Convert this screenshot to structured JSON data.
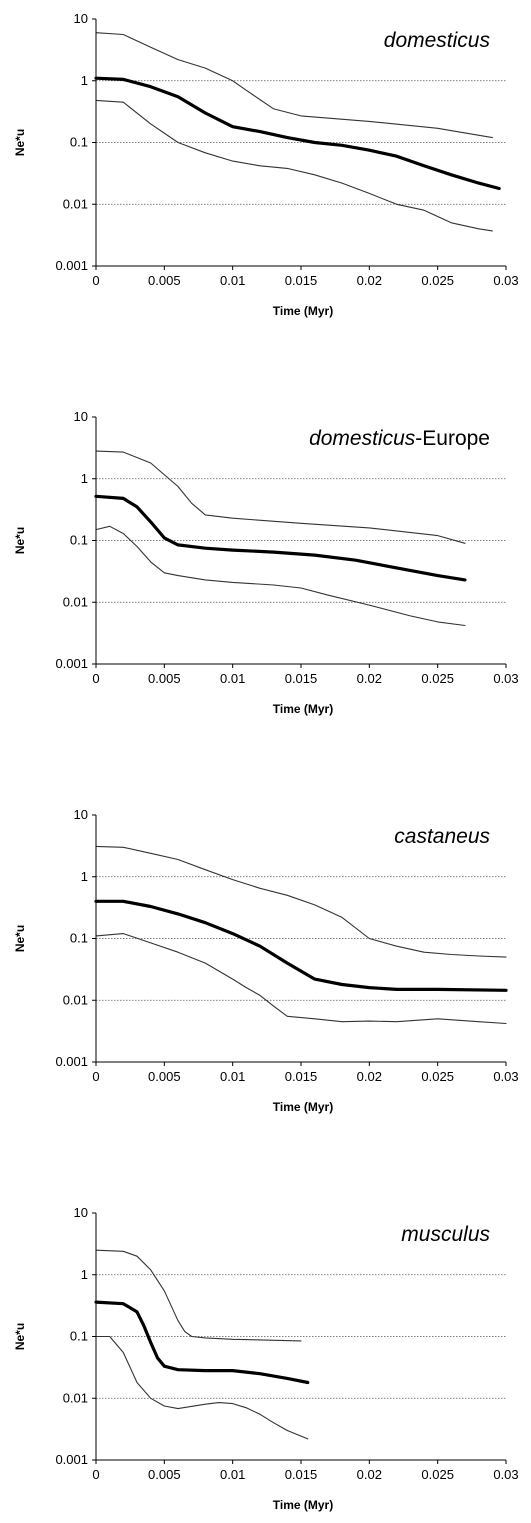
{
  "chart_data": [
    {
      "type": "line",
      "title": "domesticus",
      "title_suffix": "",
      "xlabel": "Time (Myr)",
      "ylabel": "Ne*u",
      "xlim": [
        0,
        0.03
      ],
      "ylim": [
        0.001,
        10
      ],
      "y_scale": "log",
      "x_ticks": [
        "0",
        "0.005",
        "0.01",
        "0.015",
        "0.02",
        "0.025",
        "0.03"
      ],
      "y_ticks": [
        "0.001",
        "0.01",
        "0.1",
        "1",
        "10"
      ],
      "gridlines_y": [
        0.01,
        0.1,
        1
      ],
      "series": [
        {
          "role": "upper",
          "x": [
            0,
            0.002,
            0.004,
            0.006,
            0.008,
            0.01,
            0.011,
            0.013,
            0.015,
            0.02,
            0.025,
            0.029
          ],
          "y": [
            6,
            5.6,
            3.5,
            2.2,
            1.6,
            1.0,
            0.7,
            0.35,
            0.27,
            0.22,
            0.17,
            0.12
          ]
        },
        {
          "role": "median",
          "x": [
            0,
            0.002,
            0.004,
            0.006,
            0.008,
            0.01,
            0.012,
            0.014,
            0.016,
            0.018,
            0.02,
            0.022,
            0.024,
            0.026,
            0.028,
            0.0295
          ],
          "y": [
            1.1,
            1.05,
            0.8,
            0.55,
            0.3,
            0.18,
            0.15,
            0.12,
            0.1,
            0.09,
            0.075,
            0.06,
            0.042,
            0.03,
            0.022,
            0.018
          ]
        },
        {
          "role": "lower",
          "x": [
            0,
            0.002,
            0.004,
            0.006,
            0.008,
            0.01,
            0.012,
            0.014,
            0.016,
            0.018,
            0.02,
            0.022,
            0.024,
            0.026,
            0.028,
            0.029
          ],
          "y": [
            0.48,
            0.45,
            0.2,
            0.1,
            0.068,
            0.05,
            0.042,
            0.038,
            0.03,
            0.022,
            0.015,
            0.01,
            0.008,
            0.005,
            0.004,
            0.0037
          ]
        }
      ]
    },
    {
      "type": "line",
      "title": "domesticus",
      "title_suffix": "-Europe",
      "xlabel": "Time (Myr)",
      "ylabel": "Ne*u",
      "xlim": [
        0,
        0.03
      ],
      "ylim": [
        0.001,
        10
      ],
      "y_scale": "log",
      "x_ticks": [
        "0",
        "0.005",
        "0.01",
        "0.015",
        "0.02",
        "0.025",
        "0.03"
      ],
      "y_ticks": [
        "0.001",
        "0.01",
        "0.1",
        "1",
        "10"
      ],
      "gridlines_y": [
        0.01,
        0.1,
        1
      ],
      "series": [
        {
          "role": "upper",
          "x": [
            0,
            0.002,
            0.004,
            0.006,
            0.007,
            0.008,
            0.01,
            0.015,
            0.02,
            0.025,
            0.027
          ],
          "y": [
            2.8,
            2.7,
            1.8,
            0.75,
            0.4,
            0.26,
            0.23,
            0.19,
            0.16,
            0.12,
            0.09
          ]
        },
        {
          "role": "median",
          "x": [
            0,
            0.002,
            0.003,
            0.004,
            0.005,
            0.006,
            0.008,
            0.01,
            0.013,
            0.016,
            0.019,
            0.022,
            0.025,
            0.027
          ],
          "y": [
            0.52,
            0.48,
            0.35,
            0.2,
            0.11,
            0.085,
            0.075,
            0.07,
            0.065,
            0.058,
            0.048,
            0.036,
            0.027,
            0.023
          ]
        },
        {
          "role": "lower",
          "x": [
            0,
            0.001,
            0.002,
            0.003,
            0.004,
            0.005,
            0.006,
            0.008,
            0.01,
            0.013,
            0.015,
            0.017,
            0.02,
            0.023,
            0.025,
            0.027
          ],
          "y": [
            0.15,
            0.17,
            0.13,
            0.08,
            0.045,
            0.03,
            0.027,
            0.023,
            0.021,
            0.019,
            0.017,
            0.013,
            0.009,
            0.006,
            0.0048,
            0.0042
          ]
        }
      ]
    },
    {
      "type": "line",
      "title": "castaneus",
      "title_suffix": "",
      "xlabel": "Time (Myr)",
      "ylabel": "Ne*u",
      "xlim": [
        0,
        0.03
      ],
      "ylim": [
        0.001,
        10
      ],
      "y_scale": "log",
      "x_ticks": [
        "0",
        "0.005",
        "0.01",
        "0.015",
        "0.02",
        "0.025",
        "0.03"
      ],
      "y_ticks": [
        "0.001",
        "0.01",
        "0.1",
        "1",
        "10"
      ],
      "gridlines_y": [
        0.01,
        0.1,
        1
      ],
      "series": [
        {
          "role": "upper",
          "x": [
            0,
            0.002,
            0.004,
            0.006,
            0.008,
            0.01,
            0.012,
            0.014,
            0.016,
            0.018,
            0.02,
            0.022,
            0.024,
            0.026,
            0.028,
            0.03
          ],
          "y": [
            3.1,
            3.0,
            2.4,
            1.9,
            1.3,
            0.9,
            0.65,
            0.5,
            0.35,
            0.22,
            0.1,
            0.075,
            0.06,
            0.055,
            0.052,
            0.05
          ]
        },
        {
          "role": "median",
          "x": [
            0,
            0.002,
            0.004,
            0.006,
            0.008,
            0.01,
            0.012,
            0.014,
            0.016,
            0.018,
            0.02,
            0.022,
            0.025,
            0.03
          ],
          "y": [
            0.4,
            0.4,
            0.33,
            0.25,
            0.18,
            0.12,
            0.075,
            0.04,
            0.022,
            0.018,
            0.016,
            0.015,
            0.015,
            0.0145
          ]
        },
        {
          "role": "lower",
          "x": [
            0,
            0.002,
            0.004,
            0.006,
            0.008,
            0.01,
            0.011,
            0.012,
            0.013,
            0.014,
            0.016,
            0.018,
            0.02,
            0.022,
            0.025,
            0.028,
            0.03
          ],
          "y": [
            0.11,
            0.12,
            0.085,
            0.06,
            0.04,
            0.022,
            0.016,
            0.012,
            0.008,
            0.0055,
            0.005,
            0.0045,
            0.0046,
            0.0045,
            0.005,
            0.0045,
            0.0042
          ]
        }
      ]
    },
    {
      "type": "line",
      "title": "musculus",
      "title_suffix": "",
      "xlabel": "Time (Myr)",
      "ylabel": "Ne*u",
      "xlim": [
        0,
        0.03
      ],
      "ylim": [
        0.001,
        10
      ],
      "y_scale": "log",
      "x_ticks": [
        "0",
        "0.005",
        "0.01",
        "0.015",
        "0.02",
        "0.025",
        "0.03"
      ],
      "y_ticks": [
        "0.001",
        "0.01",
        "0.1",
        "1",
        "10"
      ],
      "gridlines_y": [
        0.01,
        0.1,
        1
      ],
      "series": [
        {
          "role": "upper",
          "x": [
            0,
            0.002,
            0.003,
            0.004,
            0.005,
            0.006,
            0.0065,
            0.007,
            0.008,
            0.01,
            0.012,
            0.015
          ],
          "y": [
            2.5,
            2.4,
            2.0,
            1.2,
            0.55,
            0.18,
            0.12,
            0.1,
            0.095,
            0.09,
            0.088,
            0.085
          ]
        },
        {
          "role": "median",
          "x": [
            0,
            0.002,
            0.003,
            0.0035,
            0.004,
            0.0045,
            0.005,
            0.006,
            0.008,
            0.01,
            0.012,
            0.014,
            0.0155
          ],
          "y": [
            0.36,
            0.34,
            0.25,
            0.15,
            0.08,
            0.045,
            0.033,
            0.029,
            0.028,
            0.028,
            0.025,
            0.021,
            0.018
          ]
        },
        {
          "role": "lower",
          "x": [
            0,
            0.001,
            0.002,
            0.003,
            0.004,
            0.005,
            0.006,
            0.008,
            0.009,
            0.01,
            0.011,
            0.012,
            0.013,
            0.014,
            0.0155
          ],
          "y": [
            0.1,
            0.1,
            0.055,
            0.018,
            0.01,
            0.0075,
            0.0068,
            0.008,
            0.0085,
            0.0082,
            0.007,
            0.0055,
            0.004,
            0.003,
            0.0022
          ]
        }
      ]
    }
  ]
}
